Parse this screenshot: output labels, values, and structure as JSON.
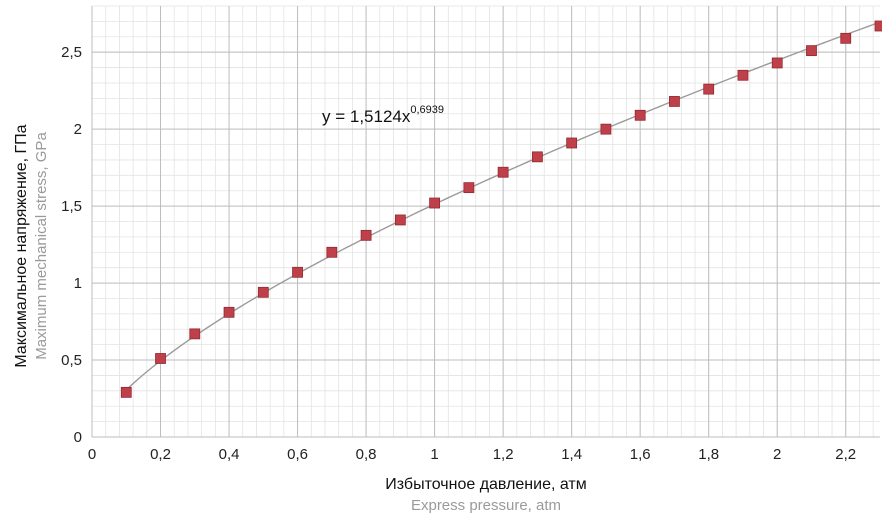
{
  "chart_data": {
    "type": "scatter",
    "x": [
      0.1,
      0.2,
      0.3,
      0.4,
      0.5,
      0.6,
      0.7,
      0.8,
      0.9,
      1.0,
      1.1,
      1.2,
      1.3,
      1.4,
      1.5,
      1.6,
      1.7,
      1.8,
      1.9,
      2.0,
      2.1,
      2.2,
      2.3
    ],
    "series": [
      {
        "values": [
          0.29,
          0.51,
          0.67,
          0.81,
          0.94,
          1.07,
          1.2,
          1.31,
          1.41,
          1.52,
          1.62,
          1.72,
          1.82,
          1.91,
          2.0,
          2.09,
          2.18,
          2.26,
          2.35,
          2.43,
          2.51,
          2.59,
          2.67
        ],
        "color": "#c0404a"
      }
    ],
    "trendline": {
      "type": "power",
      "coefficient": 1.5124,
      "exponent": 0.6939,
      "color": "#9a9a9a"
    },
    "equation": {
      "prefix": "y = 1,5124x",
      "exponent": "0,6939"
    },
    "xlabel": "Избыточное давление, атм",
    "xlabel_en": "Express pressure, atm",
    "ylabel": "Максимальное напряжение, ГПа",
    "ylabel_en": "Maximum mechanical stress, GPa",
    "xlim": [
      0,
      2.3
    ],
    "ylim": [
      0,
      2.8
    ],
    "xticks": [
      0,
      0.2,
      0.4,
      0.6,
      0.8,
      1.0,
      1.2,
      1.4,
      1.6,
      1.8,
      2.0,
      2.2
    ],
    "xtick_labels": [
      "0",
      "0,2",
      "0,4",
      "0,6",
      "0,8",
      "1",
      "1,2",
      "1,4",
      "1,6",
      "1,8",
      "2",
      "2,2"
    ],
    "yticks": [
      0,
      0.5,
      1.0,
      1.5,
      2.0,
      2.5
    ],
    "ytick_labels": [
      "0",
      "0,5",
      "1",
      "1,5",
      "2",
      "2,5"
    ],
    "grid": true,
    "minor_grid": true
  }
}
